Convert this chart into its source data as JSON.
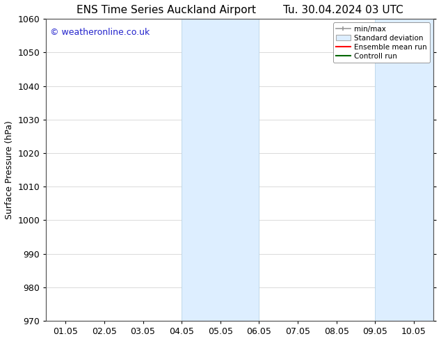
{
  "title": "ENS Time Series Auckland Airport",
  "title2": "Tu. 30.04.2024 03 UTC",
  "ylabel": "Surface Pressure (hPa)",
  "ylim": [
    970,
    1060
  ],
  "yticks": [
    970,
    980,
    990,
    1000,
    1010,
    1020,
    1030,
    1040,
    1050,
    1060
  ],
  "x_labels": [
    "01.05",
    "02.05",
    "03.05",
    "04.05",
    "05.05",
    "06.05",
    "07.05",
    "08.05",
    "09.05",
    "10.05"
  ],
  "x_positions": [
    0,
    1,
    2,
    3,
    4,
    5,
    6,
    7,
    8,
    9
  ],
  "xlim": [
    -0.5,
    9.5
  ],
  "shaded_regions": [
    {
      "x_start": 3.0,
      "x_end": 5.0
    },
    {
      "x_start": 8.0,
      "x_end": 9.5
    }
  ],
  "shaded_color": "#ddeeff",
  "shaded_edge_color": "#b8d4e8",
  "watermark_text": "© weatheronline.co.uk",
  "watermark_color": "#2222cc",
  "background_color": "#ffffff",
  "legend_items": [
    {
      "label": "min/max",
      "type": "minmax",
      "color": "#999999"
    },
    {
      "label": "Standard deviation",
      "type": "stddev",
      "color": "#bbbbbb"
    },
    {
      "label": "Ensemble mean run",
      "type": "line",
      "color": "#ff0000"
    },
    {
      "label": "Controll run",
      "type": "line",
      "color": "#006600"
    }
  ],
  "grid_color": "#cccccc",
  "spine_color": "#555555",
  "tick_fontsize": 9,
  "title_fontsize": 11,
  "label_fontsize": 9,
  "watermark_fontsize": 9
}
